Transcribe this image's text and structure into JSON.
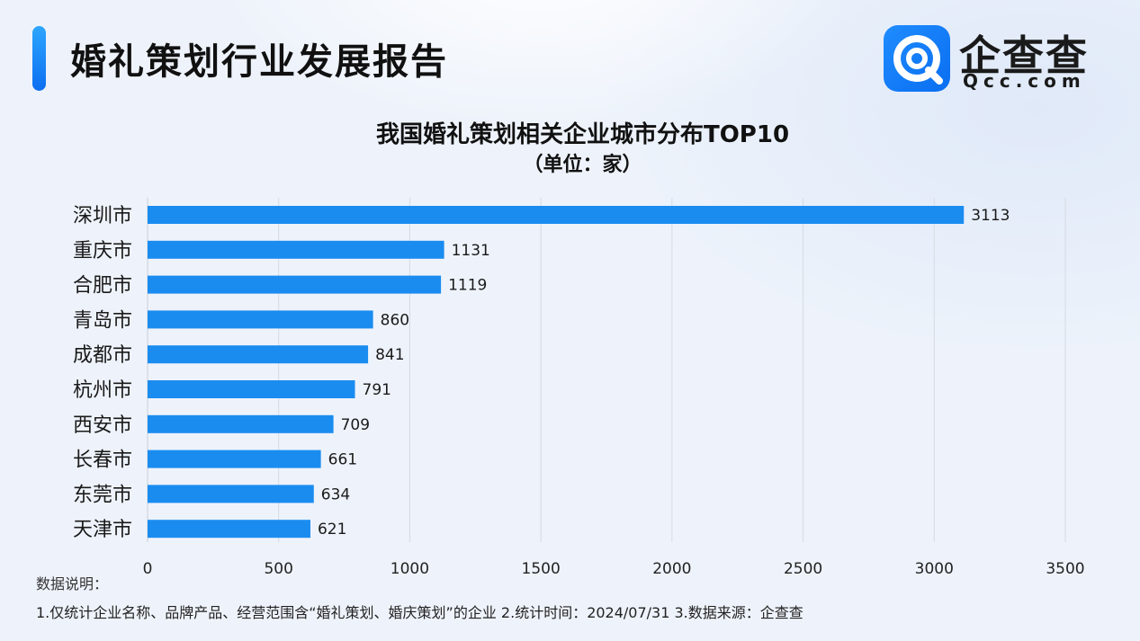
{
  "header": {
    "title": "婚礼策划行业发展报告",
    "logo_name": "企查查",
    "logo_sub": "Qcc.com"
  },
  "chart_data": {
    "type": "bar",
    "orientation": "horizontal",
    "title": "我国婚礼策划相关企业城市分布TOP10",
    "subtitle": "（单位：家）",
    "categories": [
      "深圳市",
      "重庆市",
      "合肥市",
      "青岛市",
      "成都市",
      "杭州市",
      "西安市",
      "长春市",
      "东莞市",
      "天津市"
    ],
    "values": [
      3113,
      1131,
      1119,
      860,
      841,
      791,
      709,
      661,
      634,
      621
    ],
    "xlim": [
      0,
      3500
    ],
    "xticks": [
      0,
      500,
      1000,
      1500,
      2000,
      2500,
      3000,
      3500
    ],
    "grid": true,
    "bar_color": "#1a8cf0"
  },
  "notes": {
    "label": "数据说明：",
    "text": "1.仅统计企业名称、品牌产品、经营范围含“婚礼策划、婚庆策划”的企业   2.统计时间：2024/07/31    3.数据来源：企查查"
  }
}
